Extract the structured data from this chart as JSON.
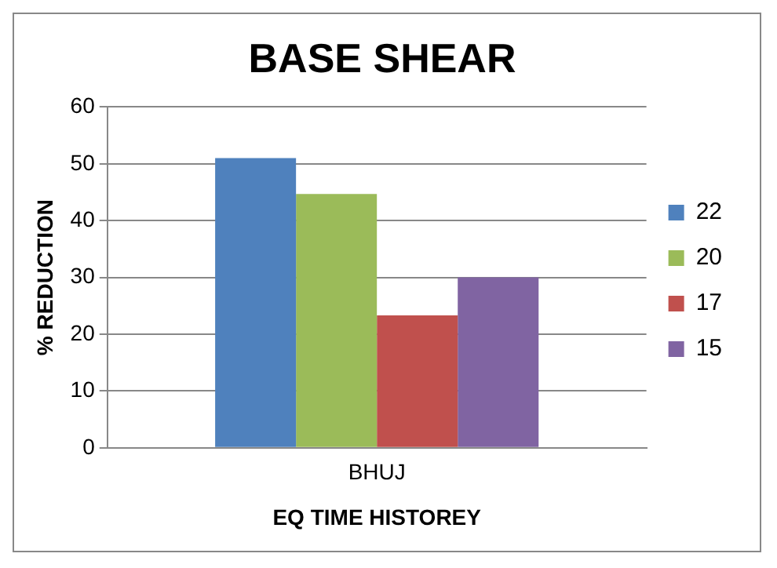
{
  "chart_data": {
    "type": "bar",
    "title": "BASE SHEAR",
    "xlabel": "EQ TIME HISTOREY",
    "ylabel": "% REDUCTION",
    "categories": [
      "BHUJ"
    ],
    "series": [
      {
        "name": "22",
        "color": "#4f81bd",
        "values": [
          51
        ]
      },
      {
        "name": "20",
        "color": "#9bbb59",
        "values": [
          44.7
        ]
      },
      {
        "name": "17",
        "color": "#c0504d",
        "values": [
          23.3
        ]
      },
      {
        "name": "15",
        "color": "#8064a2",
        "values": [
          30
        ]
      }
    ],
    "ylim": [
      0,
      60
    ],
    "yticks": [
      0,
      10,
      20,
      30,
      40,
      50,
      60
    ],
    "grid": "y",
    "legend": "right"
  }
}
